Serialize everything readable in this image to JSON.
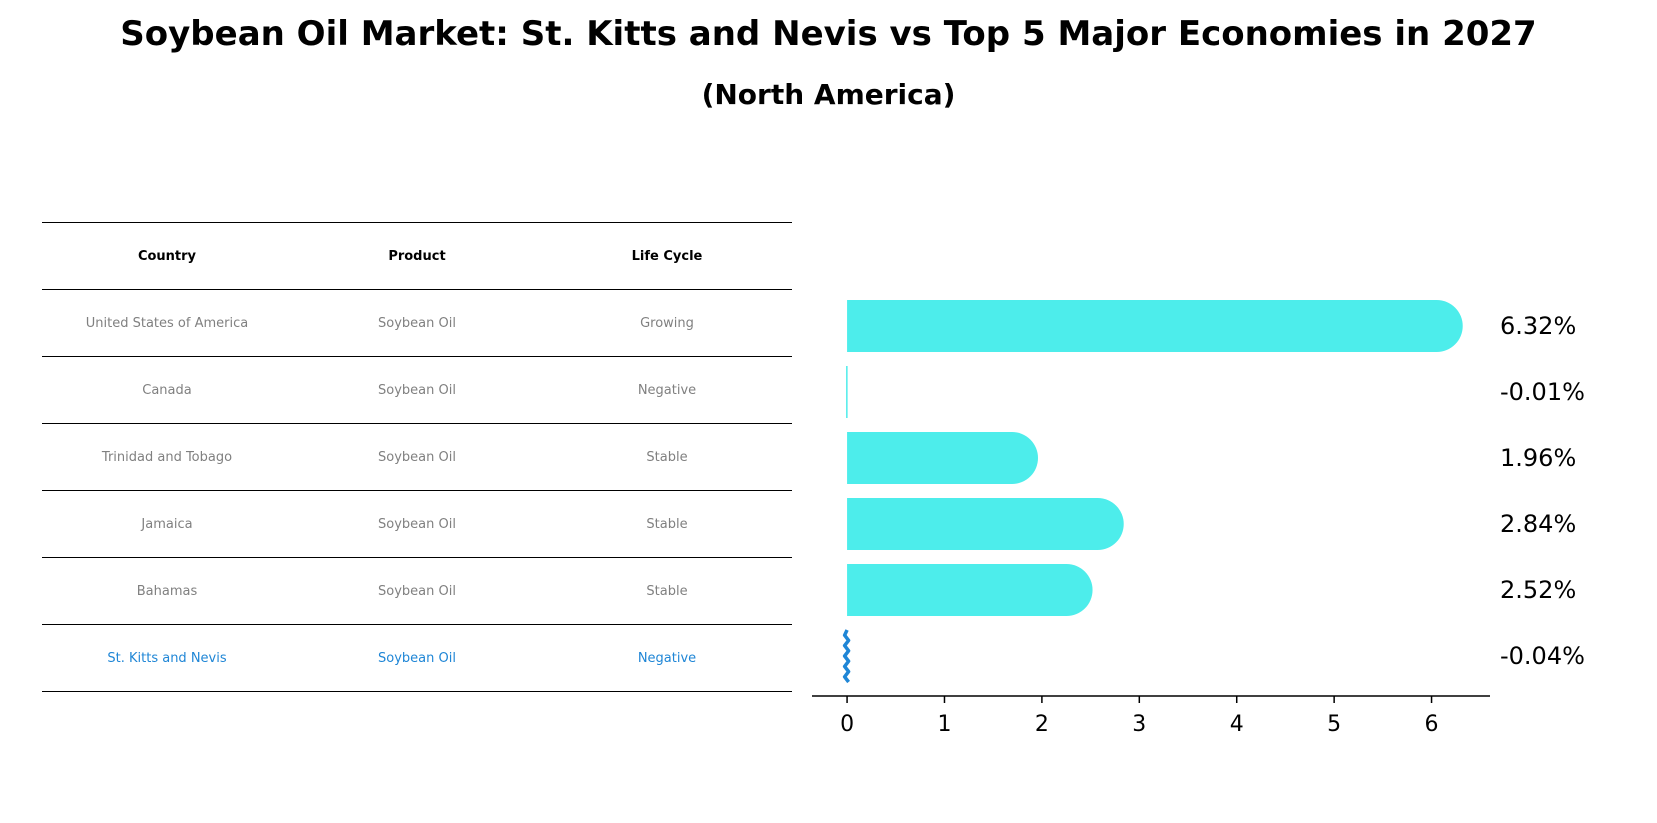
{
  "chart_data": {
    "type": "bar",
    "title": "Soybean Oil Market: St. Kitts and Nevis vs Top 5 Major Economies in 2027",
    "subtitle": "(North America)",
    "columns": [
      "Country",
      "Product",
      "Life Cycle"
    ],
    "rows": [
      {
        "country": "United States of America",
        "product": "Soybean Oil",
        "life_cycle": "Growing",
        "value": 6.32,
        "label": "6.32%"
      },
      {
        "country": "Canada",
        "product": "Soybean Oil",
        "life_cycle": "Negative",
        "value": -0.01,
        "label": "-0.01%"
      },
      {
        "country": "Trinidad and Tobago",
        "product": "Soybean Oil",
        "life_cycle": "Stable",
        "value": 1.96,
        "label": "1.96%"
      },
      {
        "country": "Jamaica",
        "product": "Soybean Oil",
        "life_cycle": "Stable",
        "value": 2.84,
        "label": "2.84%"
      },
      {
        "country": "Bahamas",
        "product": "Soybean Oil",
        "life_cycle": "Stable",
        "value": 2.52,
        "label": "2.52%"
      },
      {
        "country": "St. Kitts and Nevis",
        "product": "Soybean Oil",
        "life_cycle": "Negative",
        "value": -0.04,
        "label": "-0.04%"
      }
    ],
    "highlight": "St. Kitts and Nevis",
    "xticks": [
      "0",
      "1",
      "2",
      "3",
      "4",
      "5",
      "6"
    ],
    "xlim": [
      -0.36,
      6.6
    ],
    "colors": {
      "bar": "#4dedeb",
      "highlight": "#1f86d6",
      "table_text": "#808080"
    }
  }
}
